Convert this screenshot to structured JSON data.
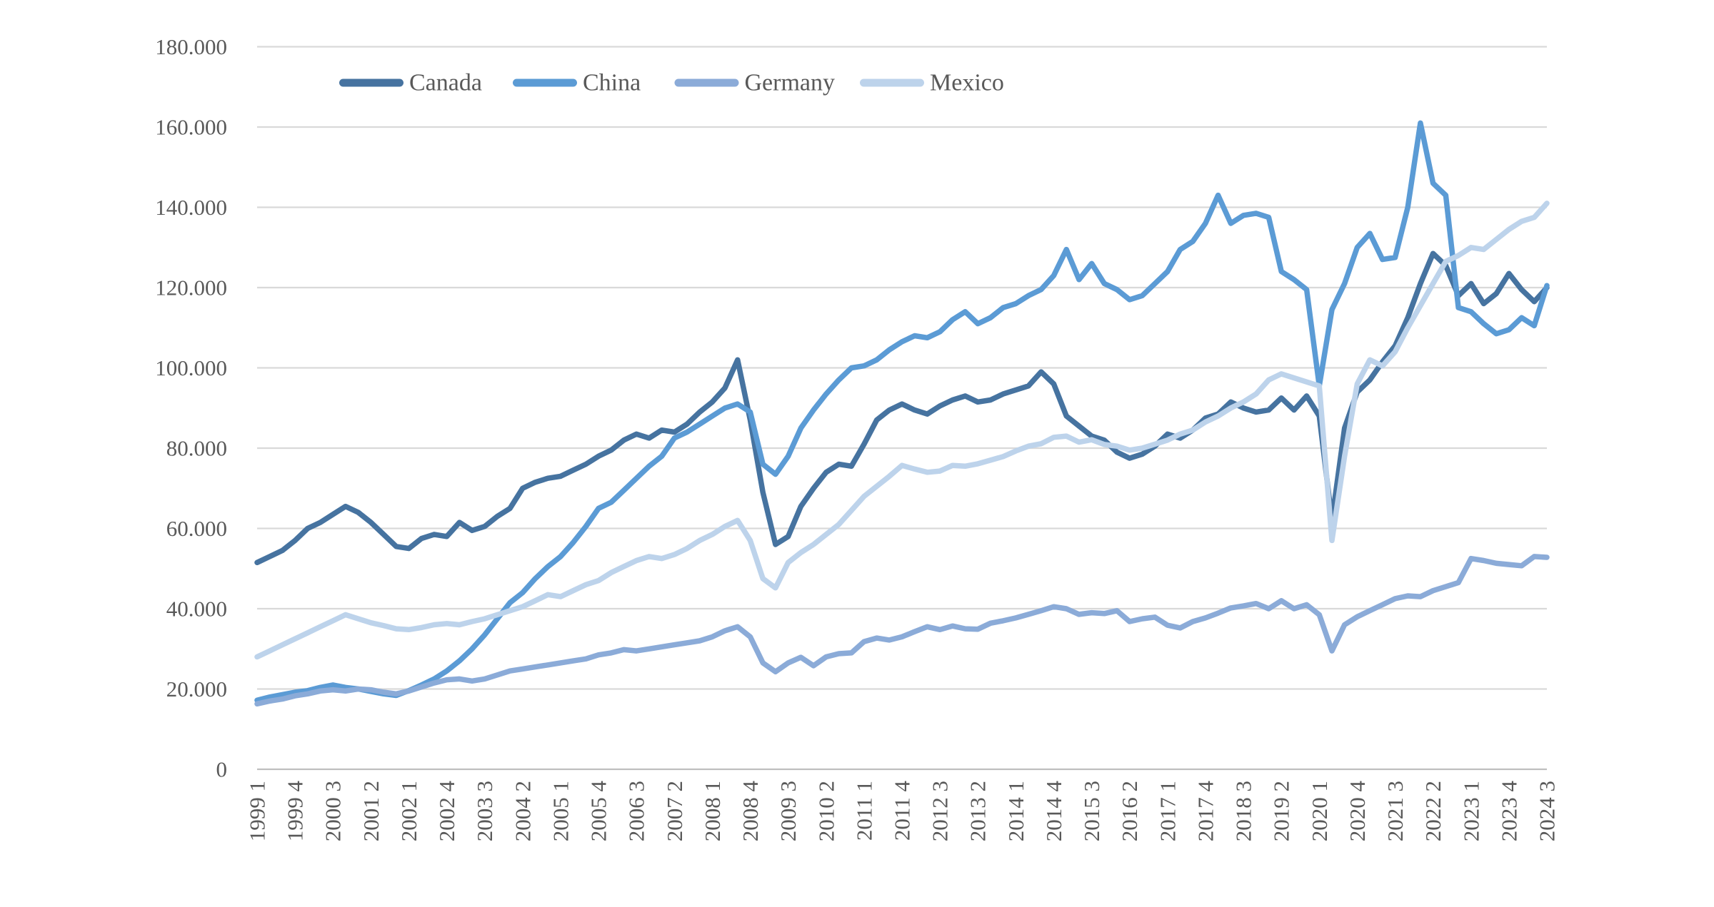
{
  "chart_data": {
    "type": "line",
    "title": "",
    "values_unit": "thousands (axis shows 20.000 steps, European dot thousand separator)",
    "legend_position": "top",
    "grid": true,
    "colors": {
      "gridline": "#D9D9D9",
      "axis_line": "#BFBFBF",
      "text": "#595959",
      "background": "#FFFFFF"
    },
    "y_axis": {
      "min": 0,
      "max": 180,
      "step": 20,
      "tick_labels": [
        "0",
        "20.000",
        "40.000",
        "60.000",
        "80.000",
        "100.000",
        "120.000",
        "140.000",
        "160.000",
        "180.000"
      ]
    },
    "x_axis": {
      "tick_every": 3,
      "tick_labels": [
        "1999 1",
        "1999 4",
        "2000 3",
        "2001 2",
        "2002 1",
        "2002 4",
        "2003 3",
        "2004 2",
        "2005 1",
        "2005 4",
        "2006 3",
        "2007 2",
        "2008 1",
        "2008 4",
        "2009 3",
        "2010 2",
        "2011 1",
        "2011 4",
        "2012 3",
        "2013 2",
        "2014 1",
        "2014 4",
        "2015 3",
        "2016 2",
        "2017 1",
        "2017 4",
        "2018 3",
        "2019 2",
        "2020 1",
        "2020 4",
        "2021 3",
        "2022 2",
        "2023 1",
        "2023 4",
        "2024 3"
      ],
      "categories": [
        "1999 1",
        "1999 2",
        "1999 3",
        "1999 4",
        "2000 1",
        "2000 2",
        "2000 3",
        "2000 4",
        "2001 1",
        "2001 2",
        "2001 3",
        "2001 4",
        "2002 1",
        "2002 2",
        "2002 3",
        "2002 4",
        "2003 1",
        "2003 2",
        "2003 3",
        "2003 4",
        "2004 1",
        "2004 2",
        "2004 3",
        "2004 4",
        "2005 1",
        "2005 2",
        "2005 3",
        "2005 4",
        "2006 1",
        "2006 2",
        "2006 3",
        "2006 4",
        "2007 1",
        "2007 2",
        "2007 3",
        "2007 4",
        "2008 1",
        "2008 2",
        "2008 3",
        "2008 4",
        "2009 1",
        "2009 2",
        "2009 3",
        "2009 4",
        "2010 1",
        "2010 2",
        "2010 3",
        "2010 4",
        "2011 1",
        "2011 2",
        "2011 3",
        "2011 4",
        "2012 1",
        "2012 2",
        "2012 3",
        "2012 4",
        "2013 1",
        "2013 2",
        "2013 3",
        "2013 4",
        "2014 1",
        "2014 2",
        "2014 3",
        "2014 4",
        "2015 1",
        "2015 2",
        "2015 3",
        "2015 4",
        "2016 1",
        "2016 2",
        "2016 3",
        "2016 4",
        "2017 1",
        "2017 2",
        "2017 3",
        "2017 4",
        "2018 1",
        "2018 2",
        "2018 3",
        "2018 4",
        "2019 1",
        "2019 2",
        "2019 3",
        "2019 4",
        "2020 1",
        "2020 2",
        "2020 3",
        "2020 4",
        "2021 1",
        "2021 2",
        "2021 3",
        "2021 4",
        "2022 1",
        "2022 2",
        "2022 3",
        "2022 4",
        "2023 1",
        "2023 2",
        "2023 3",
        "2023 4",
        "2024 1",
        "2024 2",
        "2024 3"
      ]
    },
    "series": [
      {
        "name": "Canada",
        "color": "#4673A0",
        "values": [
          51.5,
          53.0,
          54.5,
          57.0,
          60.0,
          61.5,
          63.5,
          65.5,
          64.0,
          61.5,
          58.5,
          55.5,
          55.0,
          57.5,
          58.5,
          58.0,
          61.5,
          59.5,
          60.5,
          63.0,
          65.0,
          70.0,
          71.5,
          72.5,
          73.0,
          74.5,
          76.0,
          78.0,
          79.5,
          82.0,
          83.5,
          82.5,
          84.5,
          84.0,
          86.0,
          89.0,
          91.5,
          95.0,
          102.0,
          87.0,
          69.0,
          56.0,
          58.0,
          65.5,
          70.0,
          74.0,
          76.0,
          75.5,
          81.0,
          87.0,
          89.5,
          91.0,
          89.5,
          88.5,
          90.5,
          92.0,
          93.0,
          91.5,
          92.0,
          93.5,
          94.5,
          95.5,
          99.0,
          96.0,
          88.0,
          85.5,
          83.0,
          82.0,
          79.0,
          77.5,
          78.5,
          80.5,
          83.5,
          82.5,
          84.5,
          87.5,
          88.5,
          91.5,
          90.0,
          89.0,
          89.5,
          92.5,
          89.5,
          93.0,
          88.0,
          62.0,
          85.0,
          94.0,
          97.0,
          101.5,
          105.5,
          112.5,
          121.0,
          128.5,
          125.5,
          118.0,
          121.0,
          116.0,
          118.5,
          123.5,
          119.5,
          116.5,
          120.0
        ]
      },
      {
        "name": "China",
        "color": "#5B9BD5",
        "values": [
          17.2,
          18.0,
          18.6,
          19.2,
          19.6,
          20.4,
          21.0,
          20.4,
          20.0,
          19.4,
          18.8,
          18.4,
          19.6,
          21.0,
          22.5,
          24.5,
          27.0,
          30.0,
          33.5,
          37.5,
          41.5,
          44.0,
          47.5,
          50.5,
          53.0,
          56.5,
          60.5,
          65.0,
          66.5,
          69.5,
          72.5,
          75.5,
          78.0,
          82.5,
          84.0,
          86.0,
          88.0,
          90.0,
          91.0,
          89.0,
          76.0,
          73.5,
          78.0,
          85.0,
          89.5,
          93.5,
          97.0,
          100.0,
          100.5,
          102.0,
          104.5,
          106.5,
          108.0,
          107.5,
          109.0,
          112.0,
          114.0,
          111.0,
          112.5,
          115.0,
          116.0,
          118.0,
          119.5,
          123.0,
          129.5,
          122.0,
          126.0,
          121.0,
          119.5,
          117.0,
          118.0,
          121.0,
          124.0,
          129.5,
          131.5,
          136.0,
          143.0,
          136.0,
          138.0,
          138.5,
          137.5,
          124.0,
          122.0,
          119.5,
          95.5,
          114.5,
          121.0,
          130.0,
          133.5,
          127.0,
          127.5,
          140.0,
          161.0,
          146.0,
          143.0,
          115.0,
          114.0,
          111.0,
          108.5,
          109.5,
          112.5,
          110.5,
          120.5
        ]
      },
      {
        "name": "Germany",
        "color": "#8BABD8",
        "values": [
          16.3,
          17.0,
          17.5,
          18.3,
          18.8,
          19.5,
          19.8,
          19.5,
          20.0,
          19.8,
          19.2,
          18.8,
          19.5,
          20.5,
          21.5,
          22.3,
          22.5,
          22.0,
          22.5,
          23.5,
          24.5,
          25.0,
          25.5,
          26.0,
          26.5,
          27.0,
          27.5,
          28.5,
          29.0,
          29.8,
          29.5,
          30.0,
          30.5,
          31.0,
          31.5,
          32.0,
          33.0,
          34.5,
          35.5,
          33.0,
          26.5,
          24.3,
          26.5,
          27.9,
          25.8,
          28.0,
          28.8,
          29.0,
          31.8,
          32.7,
          32.2,
          33.0,
          34.3,
          35.5,
          34.8,
          35.7,
          35.0,
          34.9,
          36.4,
          37.0,
          37.7,
          38.6,
          39.5,
          40.5,
          40.0,
          38.6,
          39.0,
          38.8,
          39.5,
          36.8,
          37.5,
          37.9,
          35.9,
          35.2,
          36.8,
          37.7,
          38.9,
          40.2,
          40.7,
          41.3,
          40.0,
          42.0,
          40.0,
          41.0,
          38.5,
          29.5,
          36.0,
          38.0,
          39.5,
          41.0,
          42.5,
          43.2,
          43.0,
          44.5,
          45.5,
          46.5,
          52.5,
          52.0,
          51.3,
          51.0,
          50.7,
          53.0,
          52.8
        ]
      },
      {
        "name": "Mexico",
        "color": "#BDD3EB",
        "values": [
          28.0,
          29.5,
          31.0,
          32.5,
          34.0,
          35.5,
          37.0,
          38.5,
          37.5,
          36.5,
          35.8,
          35.0,
          34.8,
          35.3,
          36.0,
          36.3,
          36.0,
          36.8,
          37.5,
          38.5,
          39.5,
          40.5,
          42.0,
          43.5,
          43.0,
          44.5,
          46.0,
          47.0,
          49.0,
          50.5,
          52.0,
          53.0,
          52.5,
          53.5,
          55.0,
          57.0,
          58.5,
          60.5,
          62.0,
          57.0,
          47.5,
          45.2,
          51.5,
          54.0,
          56.0,
          58.5,
          61.0,
          64.5,
          68.0,
          70.5,
          73.0,
          75.7,
          74.8,
          74.0,
          74.3,
          75.7,
          75.5,
          76.1,
          77.0,
          77.9,
          79.3,
          80.5,
          81.1,
          82.7,
          83.0,
          81.5,
          82.1,
          80.9,
          80.5,
          79.5,
          80.0,
          81.0,
          82.0,
          83.5,
          84.5,
          86.5,
          88.0,
          90.0,
          91.5,
          93.5,
          97.0,
          98.5,
          97.5,
          96.5,
          95.5,
          57.0,
          78.0,
          96.0,
          102.0,
          100.5,
          104.0,
          110.0,
          115.5,
          121.0,
          126.5,
          128.0,
          130.0,
          129.5,
          132.0,
          134.5,
          136.5,
          137.5,
          141.0
        ]
      }
    ]
  }
}
